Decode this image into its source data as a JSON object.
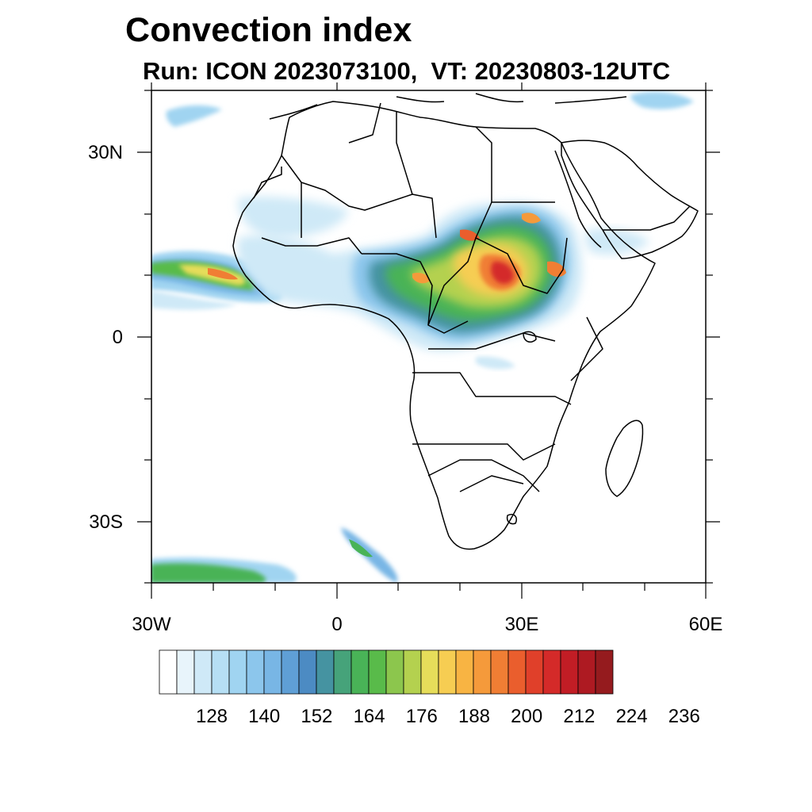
{
  "title": "Convection index",
  "subtitle": "Run: ICON 2023073100,  VT: 20230803-12UTC",
  "axes": {
    "lat_labels": [
      "30N",
      "0",
      "30S"
    ],
    "lon_labels": [
      "30W",
      "0",
      "30E",
      "60E"
    ]
  },
  "map": {
    "projection": "lat-lon",
    "lon_range": [
      -30,
      60
    ],
    "lat_range": [
      -40,
      40
    ],
    "coastline_color": "#000000"
  },
  "colorbar": {
    "labels": [
      "128",
      "140",
      "152",
      "164",
      "176",
      "188",
      "200",
      "212",
      "224",
      "236"
    ],
    "colors": [
      "#ffffff",
      "#e8f4fb",
      "#cfe9f7",
      "#b6dff4",
      "#a0d4f1",
      "#8cc6ec",
      "#78b6e5",
      "#5f9fd6",
      "#4c8bc3",
      "#4593a1",
      "#46a37a",
      "#49b357",
      "#59bb4a",
      "#8cc64d",
      "#b4d14f",
      "#e6dd5a",
      "#f6cd52",
      "#f8b443",
      "#f59a3b",
      "#f07e34",
      "#ea5e2d",
      "#e0402a",
      "#d42a29",
      "#c21d25",
      "#ae1a22",
      "#951b1e"
    ]
  }
}
